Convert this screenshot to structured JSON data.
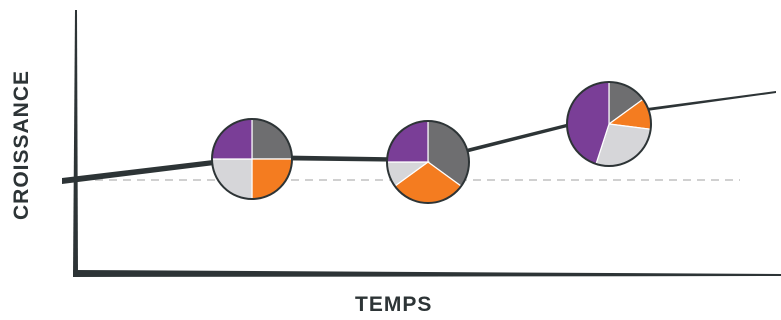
{
  "axis": {
    "x_title": "TEMPS",
    "y_title": "CROISSANCE"
  },
  "colors": {
    "axis": "#2d3436",
    "baseline": "#d0d0d0",
    "purple": "#7a3e97",
    "gray": "#6e6e70",
    "orange": "#f47c20",
    "light": "#d6d6d9"
  },
  "pies": [
    {
      "name": "pie-1",
      "slices": [
        {
          "color": "gray",
          "value": 25
        },
        {
          "color": "orange",
          "value": 25
        },
        {
          "color": "light",
          "value": 25
        },
        {
          "color": "purple",
          "value": 25
        }
      ]
    },
    {
      "name": "pie-2",
      "slices": [
        {
          "color": "gray",
          "value": 35
        },
        {
          "color": "orange",
          "value": 30
        },
        {
          "color": "light",
          "value": 10
        },
        {
          "color": "purple",
          "value": 25
        }
      ]
    },
    {
      "name": "pie-3",
      "slices": [
        {
          "color": "gray",
          "value": 15
        },
        {
          "color": "orange",
          "value": 12
        },
        {
          "color": "light",
          "value": 28
        },
        {
          "color": "purple",
          "value": 45
        }
      ]
    }
  ]
}
